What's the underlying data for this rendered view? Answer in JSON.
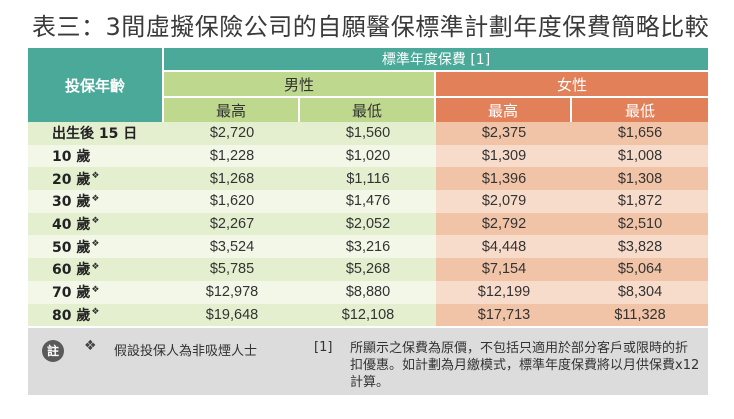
{
  "title": "表三：3間虛擬保險公司的自願醫保標準計劃年度保費簡略比較",
  "table": {
    "age_header": "投保年齡",
    "premium_header": "標準年度保費 [1]",
    "male_header": "男性",
    "female_header": "女性",
    "col_max": "最高",
    "col_min": "最低",
    "rows": [
      {
        "age": "出生後 15 日",
        "mark": "",
        "male_max": "$2,720",
        "male_min": "$1,560",
        "female_max": "$2,375",
        "female_min": "$1,656"
      },
      {
        "age": "10 歲",
        "mark": "",
        "male_max": "$1,228",
        "male_min": "$1,020",
        "female_max": "$1,309",
        "female_min": "$1,008"
      },
      {
        "age": "20 歲",
        "mark": "❖",
        "male_max": "$1,268",
        "male_min": "$1,116",
        "female_max": "$1,396",
        "female_min": "$1,308"
      },
      {
        "age": "30 歲",
        "mark": "❖",
        "male_max": "$1,620",
        "male_min": "$1,476",
        "female_max": "$2,079",
        "female_min": "$1,872"
      },
      {
        "age": "40 歲",
        "mark": "❖",
        "male_max": "$2,267",
        "male_min": "$2,052",
        "female_max": "$2,792",
        "female_min": "$2,510"
      },
      {
        "age": "50 歲",
        "mark": "❖",
        "male_max": "$3,524",
        "male_min": "$3,216",
        "female_max": "$4,448",
        "female_min": "$3,828"
      },
      {
        "age": "60 歲",
        "mark": "❖",
        "male_max": "$5,785",
        "male_min": "$5,268",
        "female_max": "$7,154",
        "female_min": "$5,064"
      },
      {
        "age": "70 歲",
        "mark": "❖",
        "male_max": "$12,978",
        "male_min": "$8,880",
        "female_max": "$12,199",
        "female_min": "$8,304"
      },
      {
        "age": "80 歲",
        "mark": "❖",
        "male_max": "$19,648",
        "male_min": "$12,108",
        "female_max": "$17,713",
        "female_min": "$11,328"
      }
    ]
  },
  "notes": {
    "badge": "註",
    "mark": "❖",
    "mark_text": "假設投保人為非吸煙人士",
    "ref": "[1]",
    "ref_text": "所顯示之保費為原價，不包括只適用於部分客戶或限時的折扣優惠。如計劃為月繳模式，標準年度保費將以月供保費x12計算。"
  },
  "colors": {
    "teal": "#4aa999",
    "male_green": "#bed88e",
    "female_orange": "#e2805a",
    "note_gray": "#dcdcdc"
  }
}
